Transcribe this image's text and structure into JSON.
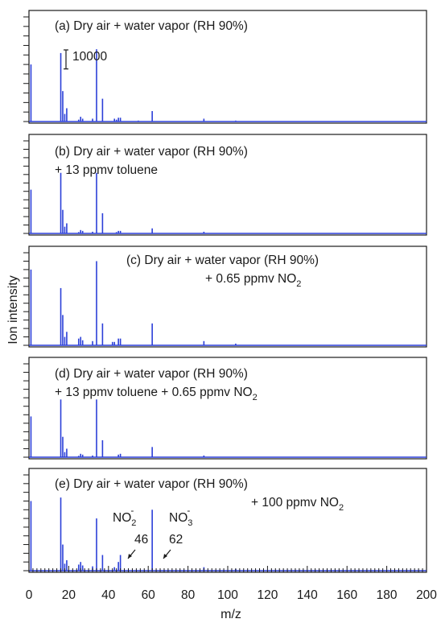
{
  "chart_data": [
    {
      "type": "bar",
      "panel_label": [
        "(a) Dry air + water vapor (RH 90%)"
      ],
      "scale_bar_label": "10000",
      "points": [
        {
          "x": 1,
          "y": 30000
        },
        {
          "x": 16,
          "y": 36000
        },
        {
          "x": 17,
          "y": 16000
        },
        {
          "x": 18,
          "y": 4000
        },
        {
          "x": 19,
          "y": 7000
        },
        {
          "x": 25,
          "y": 1000
        },
        {
          "x": 26,
          "y": 2500
        },
        {
          "x": 27,
          "y": 1500
        },
        {
          "x": 32,
          "y": 1500
        },
        {
          "x": 34,
          "y": 38000
        },
        {
          "x": 37,
          "y": 12000
        },
        {
          "x": 43,
          "y": 1500
        },
        {
          "x": 44,
          "y": 1000
        },
        {
          "x": 45,
          "y": 2000
        },
        {
          "x": 46,
          "y": 2000
        },
        {
          "x": 55,
          "y": 500
        },
        {
          "x": 62,
          "y": 5500
        },
        {
          "x": 88,
          "y": 1500
        },
        {
          "x": 104,
          "y": 500
        }
      ]
    },
    {
      "type": "bar",
      "panel_label": [
        "(b) Dry air + water vapor (RH 90%)",
        "+ 13 ppmv toluene"
      ],
      "points": [
        {
          "x": 1,
          "y": 26000
        },
        {
          "x": 16,
          "y": 36000
        },
        {
          "x": 17,
          "y": 14000
        },
        {
          "x": 18,
          "y": 4000
        },
        {
          "x": 19,
          "y": 6000
        },
        {
          "x": 25,
          "y": 800
        },
        {
          "x": 26,
          "y": 2000
        },
        {
          "x": 27,
          "y": 1500
        },
        {
          "x": 32,
          "y": 1000
        },
        {
          "x": 34,
          "y": 36000
        },
        {
          "x": 37,
          "y": 12000
        },
        {
          "x": 44,
          "y": 800
        },
        {
          "x": 45,
          "y": 1500
        },
        {
          "x": 46,
          "y": 1500
        },
        {
          "x": 62,
          "y": 3000
        },
        {
          "x": 88,
          "y": 1000
        }
      ]
    },
    {
      "type": "bar",
      "panel_label": [
        "(c) Dry air + water vapor (RH 90%)",
        "+ 0.65 ppmv NO",
        "2"
      ],
      "points": [
        {
          "x": 1,
          "y": 45000
        },
        {
          "x": 16,
          "y": 34000
        },
        {
          "x": 17,
          "y": 18000
        },
        {
          "x": 18,
          "y": 5000
        },
        {
          "x": 19,
          "y": 8000
        },
        {
          "x": 25,
          "y": 4000
        },
        {
          "x": 26,
          "y": 5000
        },
        {
          "x": 27,
          "y": 3000
        },
        {
          "x": 32,
          "y": 2500
        },
        {
          "x": 34,
          "y": 50000
        },
        {
          "x": 37,
          "y": 13000
        },
        {
          "x": 42,
          "y": 2000
        },
        {
          "x": 43,
          "y": 2000
        },
        {
          "x": 45,
          "y": 4000
        },
        {
          "x": 46,
          "y": 4000
        },
        {
          "x": 62,
          "y": 13000
        },
        {
          "x": 88,
          "y": 2500
        },
        {
          "x": 104,
          "y": 1000
        }
      ]
    },
    {
      "type": "bar",
      "panel_label": [
        "(d) Dry air + water vapor (RH 90%)",
        "+ 13 ppmv toluene + 0.65 ppmv NO",
        "2"
      ],
      "points": [
        {
          "x": 1,
          "y": 24000
        },
        {
          "x": 16,
          "y": 34000
        },
        {
          "x": 17,
          "y": 12000
        },
        {
          "x": 18,
          "y": 3000
        },
        {
          "x": 19,
          "y": 5000
        },
        {
          "x": 25,
          "y": 800
        },
        {
          "x": 26,
          "y": 2000
        },
        {
          "x": 27,
          "y": 1500
        },
        {
          "x": 32,
          "y": 1000
        },
        {
          "x": 34,
          "y": 34000
        },
        {
          "x": 37,
          "y": 10000
        },
        {
          "x": 45,
          "y": 1500
        },
        {
          "x": 46,
          "y": 2000
        },
        {
          "x": 62,
          "y": 6000
        },
        {
          "x": 88,
          "y": 1000
        }
      ]
    },
    {
      "type": "bar",
      "panel_label": [
        "(e) Dry air + water vapor (RH 90%)",
        "+ 100 ppmv NO",
        "2"
      ],
      "annotations": [
        {
          "text": "NO",
          "sub": "2",
          "sup": "-",
          "value": "46"
        },
        {
          "text": "NO",
          "sub": "3",
          "sup": "-",
          "value": "62"
        }
      ],
      "points": [
        {
          "x": 1,
          "y": 40000
        },
        {
          "x": 16,
          "y": 42000
        },
        {
          "x": 17,
          "y": 15000
        },
        {
          "x": 18,
          "y": 4000
        },
        {
          "x": 19,
          "y": 6000
        },
        {
          "x": 25,
          "y": 3500
        },
        {
          "x": 26,
          "y": 5000
        },
        {
          "x": 27,
          "y": 3000
        },
        {
          "x": 32,
          "y": 2500
        },
        {
          "x": 34,
          "y": 30000
        },
        {
          "x": 37,
          "y": 9000
        },
        {
          "x": 43,
          "y": 2000
        },
        {
          "x": 45,
          "y": 5000
        },
        {
          "x": 46,
          "y": 9000
        },
        {
          "x": 62,
          "y": 35000
        },
        {
          "x": 88,
          "y": 2000
        },
        {
          "x": 104,
          "y": 1000
        }
      ]
    }
  ],
  "axes": {
    "xlabel": "m/z",
    "ylabel": "Ion intensity",
    "xlim": [
      0,
      200
    ],
    "xticks": [
      "0",
      "20",
      "40",
      "60",
      "80",
      "100",
      "120",
      "140",
      "160",
      "180",
      "200"
    ],
    "ylim_per_panel": [
      0,
      55000
    ],
    "y_minor_tick_step": 5000
  },
  "colors": {
    "series": "#2b3fd8",
    "axis": "#1a1a1a"
  }
}
